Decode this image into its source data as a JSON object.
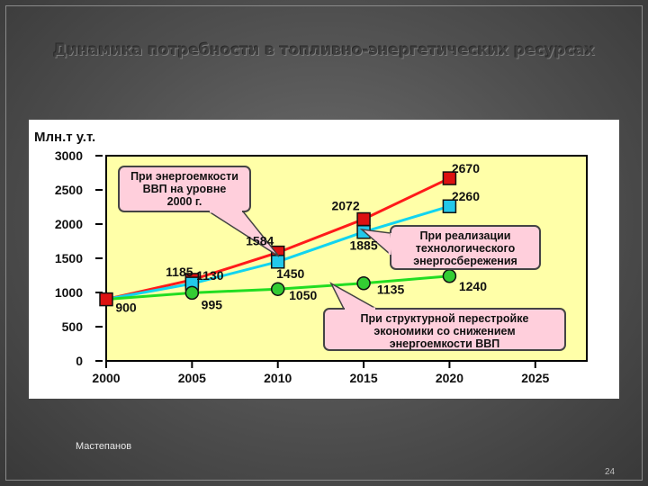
{
  "slide": {
    "title": "Динамика потребности в топливно-энергетических ресурсах",
    "author": "Мастепанов",
    "page_number": "24"
  },
  "chart_data": {
    "type": "line",
    "ylabel": "Млн.т у.т.",
    "x_ticks": [
      "2000",
      "2005",
      "2010",
      "2015",
      "2020",
      "2025"
    ],
    "y_ticks": [
      "0",
      "500",
      "1000",
      "1500",
      "2000",
      "2500",
      "3000"
    ],
    "xlim": [
      2000,
      2028
    ],
    "ylim": [
      0,
      3000
    ],
    "grid": false,
    "background_color": "#ffffa8",
    "series": [
      {
        "color": "#ff1a1a",
        "marker_color": "#dd1111",
        "marker": "square",
        "x": [
          2000,
          2005,
          2010,
          2015,
          2020
        ],
        "y": [
          900,
          1185,
          1584,
          2072,
          2670
        ],
        "labels": [
          "900",
          "1185",
          "1584",
          "2072",
          "2670"
        ]
      },
      {
        "color": "#11d4f0",
        "marker_color": "#22c8ea",
        "marker": "square",
        "x": [
          2000,
          2005,
          2010,
          2015,
          2020
        ],
        "y": [
          900,
          1130,
          1450,
          1885,
          2260
        ],
        "labels": [
          "",
          "1130",
          "1450",
          "1885",
          "2260"
        ]
      },
      {
        "color": "#22dd22",
        "marker_color": "#33cc33",
        "marker": "circle",
        "x": [
          2000,
          2005,
          2010,
          2015,
          2020
        ],
        "y": [
          900,
          995,
          1050,
          1135,
          1240
        ],
        "labels": [
          "",
          "995",
          "1050",
          "1135",
          "1240"
        ]
      }
    ],
    "annotations": [
      {
        "lines": [
          "При энергоемкости",
          "ВВП на уровне",
          "2000 г."
        ]
      },
      {
        "lines": [
          "При реализации",
          "технологического",
          "энергосбережения"
        ]
      },
      {
        "lines": [
          "При структурной перестройке",
          "экономики со снижением",
          "энергоемкости ВВП"
        ]
      }
    ]
  }
}
